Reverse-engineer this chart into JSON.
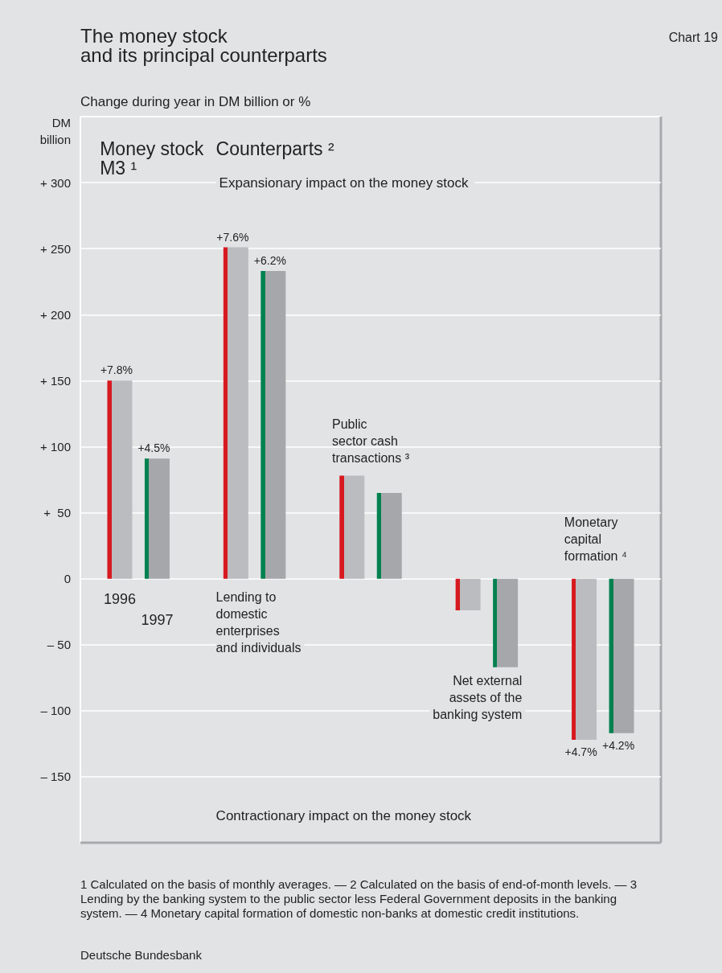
{
  "chart_data": {
    "type": "bar",
    "title": "The money stock\nand its principal counterparts",
    "subtitle": "Change during year in DM billion or %",
    "ylabel": "DM\nbillion",
    "categories": [
      "Money stock\nM3 ¹",
      "Lending to\ndomestic\nenterprises\nand individuals",
      "Public\nsector cash\ntransactions ³",
      "Net external\nassets of the\nbanking system",
      "Monetary\ncapital\nformation ⁴"
    ],
    "series": [
      {
        "name": "1996",
        "color": "#d71920",
        "values": [
          150,
          251,
          78,
          -24,
          -122
        ]
      },
      {
        "name": "1997",
        "color": "#00814f",
        "values": [
          91,
          233,
          65,
          -67,
          -117
        ]
      }
    ],
    "ylim": [
      -200,
      350
    ],
    "yticks": [
      {
        "value": 300,
        "label": "+ 300"
      },
      {
        "value": 250,
        "label": "+ 250"
      },
      {
        "value": 200,
        "label": "+ 200"
      },
      {
        "value": 150,
        "label": "+ 150"
      },
      {
        "value": 100,
        "label": "+ 100"
      },
      {
        "value": 50,
        "label": "+  50"
      },
      0,
      {
        "value": -50,
        "label": "– 50"
      },
      {
        "value": -100,
        "label": "– 100"
      },
      {
        "value": -150,
        "label": "– 150"
      }
    ],
    "grid": "y",
    "annotations": [
      "Chart 19",
      "Counterparts ²",
      "Expansionary impact on the money stock",
      "Contractionary impact on the money stock",
      "1 Calculated on the basis of monthly averages. — 2 Calculated on the basis of end-of-month levels. — 3 Lending by the banking system to the public sector less Federal Government deposits in the banking system. — 4 Monetary capital formation of domestic non-banks at domestic credit institutions.",
      "Deutsche Bundesbank",
      "+7.8%",
      "+4.5%",
      "+7.6%",
      "+6.2%",
      "+4.7%",
      "+4.2%"
    ]
  }
}
